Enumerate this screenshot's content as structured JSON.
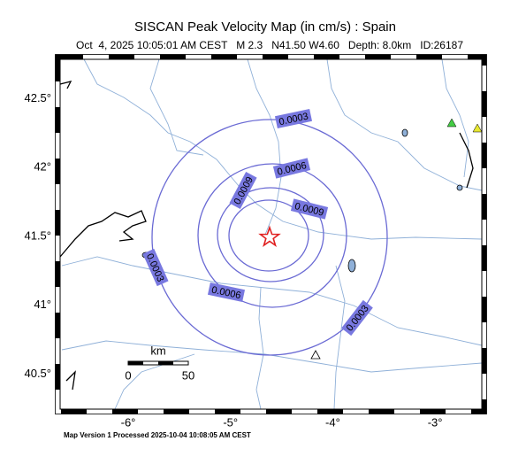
{
  "header": {
    "title": "SISCAN Peak Velocity Map (in cm/s) : Spain",
    "subtitle": "Oct  4, 2025 10:05:01 AM CEST   M 2.3   N41.50 W4.60   Depth: 8.0km   ID:26187"
  },
  "map": {
    "lat_ticks": [
      {
        "value": 42.5,
        "label": "42.5°"
      },
      {
        "value": 42,
        "label": "42°"
      },
      {
        "value": 41.5,
        "label": "41.5°"
      },
      {
        "value": 41,
        "label": "41°"
      },
      {
        "value": 40.5,
        "label": "40.5°"
      }
    ],
    "lon_ticks": [
      {
        "value": -6,
        "label": "-6°"
      },
      {
        "value": -5,
        "label": "-5°"
      },
      {
        "value": -4,
        "label": "-4°"
      },
      {
        "value": -3,
        "label": "-3°"
      }
    ],
    "contour_levels": [
      0.0003,
      0.0006,
      0.0009
    ],
    "contour_labels": [
      0.0003,
      0.0006,
      0.0009,
      0.0009,
      0.0003,
      0.0006,
      0.0003
    ],
    "scale_bar": {
      "unit": "km",
      "start": "0",
      "end": "50"
    }
  },
  "footer": {
    "text": "Map Version 1 Processed 2025-10-04 10:08:05 AM CEST"
  }
}
